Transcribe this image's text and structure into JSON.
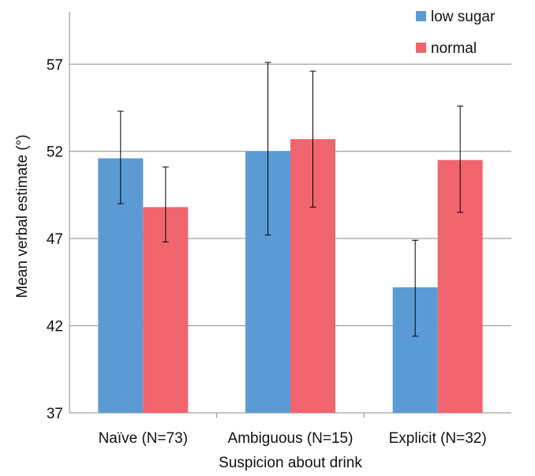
{
  "chart_data": {
    "type": "bar",
    "title": "",
    "xlabel": "Suspicion about drink",
    "ylabel": "Mean verbal estimate (°)",
    "ylim": [
      37,
      60
    ],
    "yticks": [
      "37",
      "42",
      "47",
      "52",
      "57"
    ],
    "grid": true,
    "legend_position": "top-right",
    "categories": [
      "Naïve (N=73)",
      "Ambiguous (N=15)",
      "Explicit (N=32)"
    ],
    "series": [
      {
        "name": "low sugar",
        "color": "#5b9bd5",
        "values": [
          51.6,
          52.0,
          44.2
        ],
        "error_low": [
          49.0,
          47.2,
          41.4
        ],
        "error_high": [
          54.3,
          57.1,
          46.9
        ]
      },
      {
        "name": "normal",
        "color": "#f0656e",
        "values": [
          48.8,
          52.7,
          51.5
        ],
        "error_low": [
          46.8,
          48.8,
          48.5
        ],
        "error_high": [
          51.1,
          56.6,
          54.6
        ]
      }
    ]
  }
}
